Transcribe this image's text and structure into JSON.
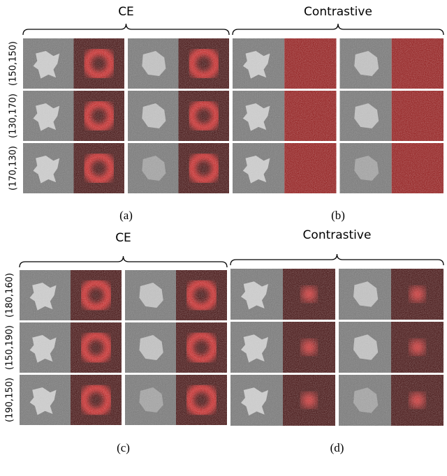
{
  "panels": [
    {
      "title": "CE",
      "rows": [
        "(150,150)",
        "(130,170)",
        "(170,130)"
      ],
      "caption": "(a)"
    },
    {
      "title": "Contrastive",
      "rows": [],
      "caption": "(b)"
    },
    {
      "title": "CE",
      "rows": [
        "(180,160)",
        "(150,190)",
        "(190,150)"
      ],
      "caption": "(c)"
    },
    {
      "title": "Contrastive",
      "rows": [],
      "caption": "(d)"
    }
  ]
}
